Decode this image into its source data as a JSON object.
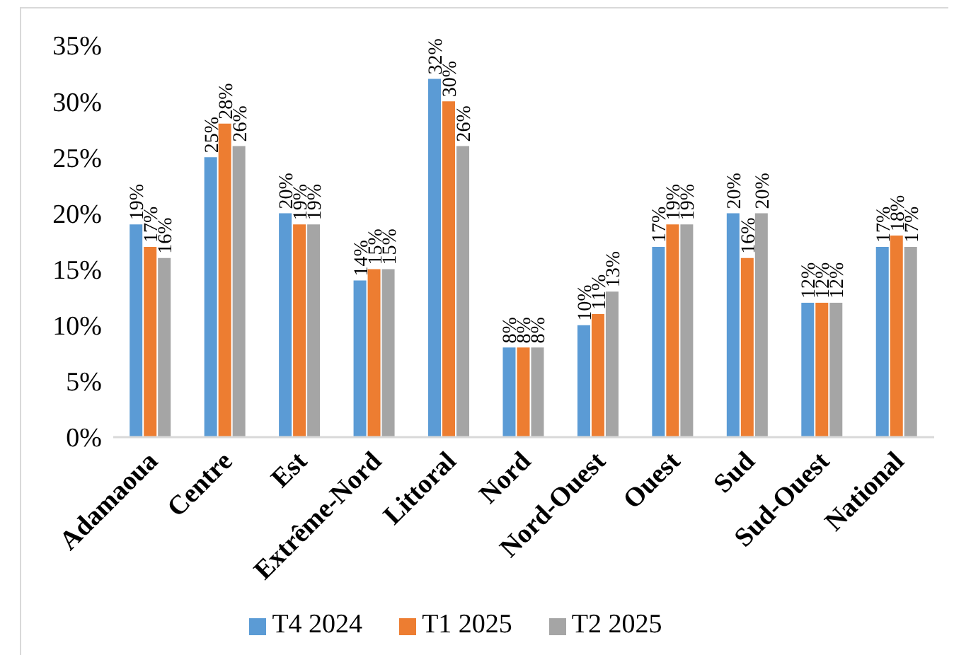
{
  "chart_data": {
    "type": "bar",
    "categories": [
      "Adamaoua",
      "Centre",
      "Est",
      "Extrême-Nord",
      "Littoral",
      "Nord",
      "Nord-Ouest",
      "Ouest",
      "Sud",
      "Sud-Ouest",
      "National"
    ],
    "series": [
      {
        "name": "T4 2024",
        "color": "#5b9bd5",
        "values": [
          19,
          25,
          20,
          14,
          32,
          8,
          10,
          17,
          20,
          12,
          17
        ],
        "value_labels": [
          "19%",
          "25%",
          "20%",
          "14%",
          "32%",
          "8%",
          "10%",
          "17%",
          "20%",
          "12%",
          "17%"
        ]
      },
      {
        "name": "T1 2025",
        "color": "#ed7d31",
        "values": [
          17,
          28,
          19,
          15,
          30,
          8,
          11,
          19,
          16,
          12,
          18
        ],
        "value_labels": [
          "17%",
          "28%",
          "19%",
          "15%",
          "30%",
          "8%",
          "11%",
          "19%",
          "16%",
          "12%",
          "18%"
        ]
      },
      {
        "name": "T2 2025",
        "color": "#a5a5a5",
        "values": [
          16,
          26,
          19,
          15,
          26,
          8,
          13,
          19,
          20,
          12,
          17
        ],
        "value_labels": [
          "16%",
          "26%",
          "19%",
          "15%",
          "26%",
          "8%",
          "13%",
          "19%",
          "20%",
          "12%",
          "17%"
        ]
      }
    ],
    "ylim": [
      0,
      35
    ],
    "yticks": [
      {
        "value": 0,
        "label": "0%"
      },
      {
        "value": 5,
        "label": "5%"
      },
      {
        "value": 10,
        "label": "10%"
      },
      {
        "value": 15,
        "label": "15%"
      },
      {
        "value": 20,
        "label": "20%"
      },
      {
        "value": 25,
        "label": "25%"
      },
      {
        "value": 30,
        "label": "30%"
      },
      {
        "value": 35,
        "label": "35%"
      }
    ],
    "legend": "bottom"
  }
}
